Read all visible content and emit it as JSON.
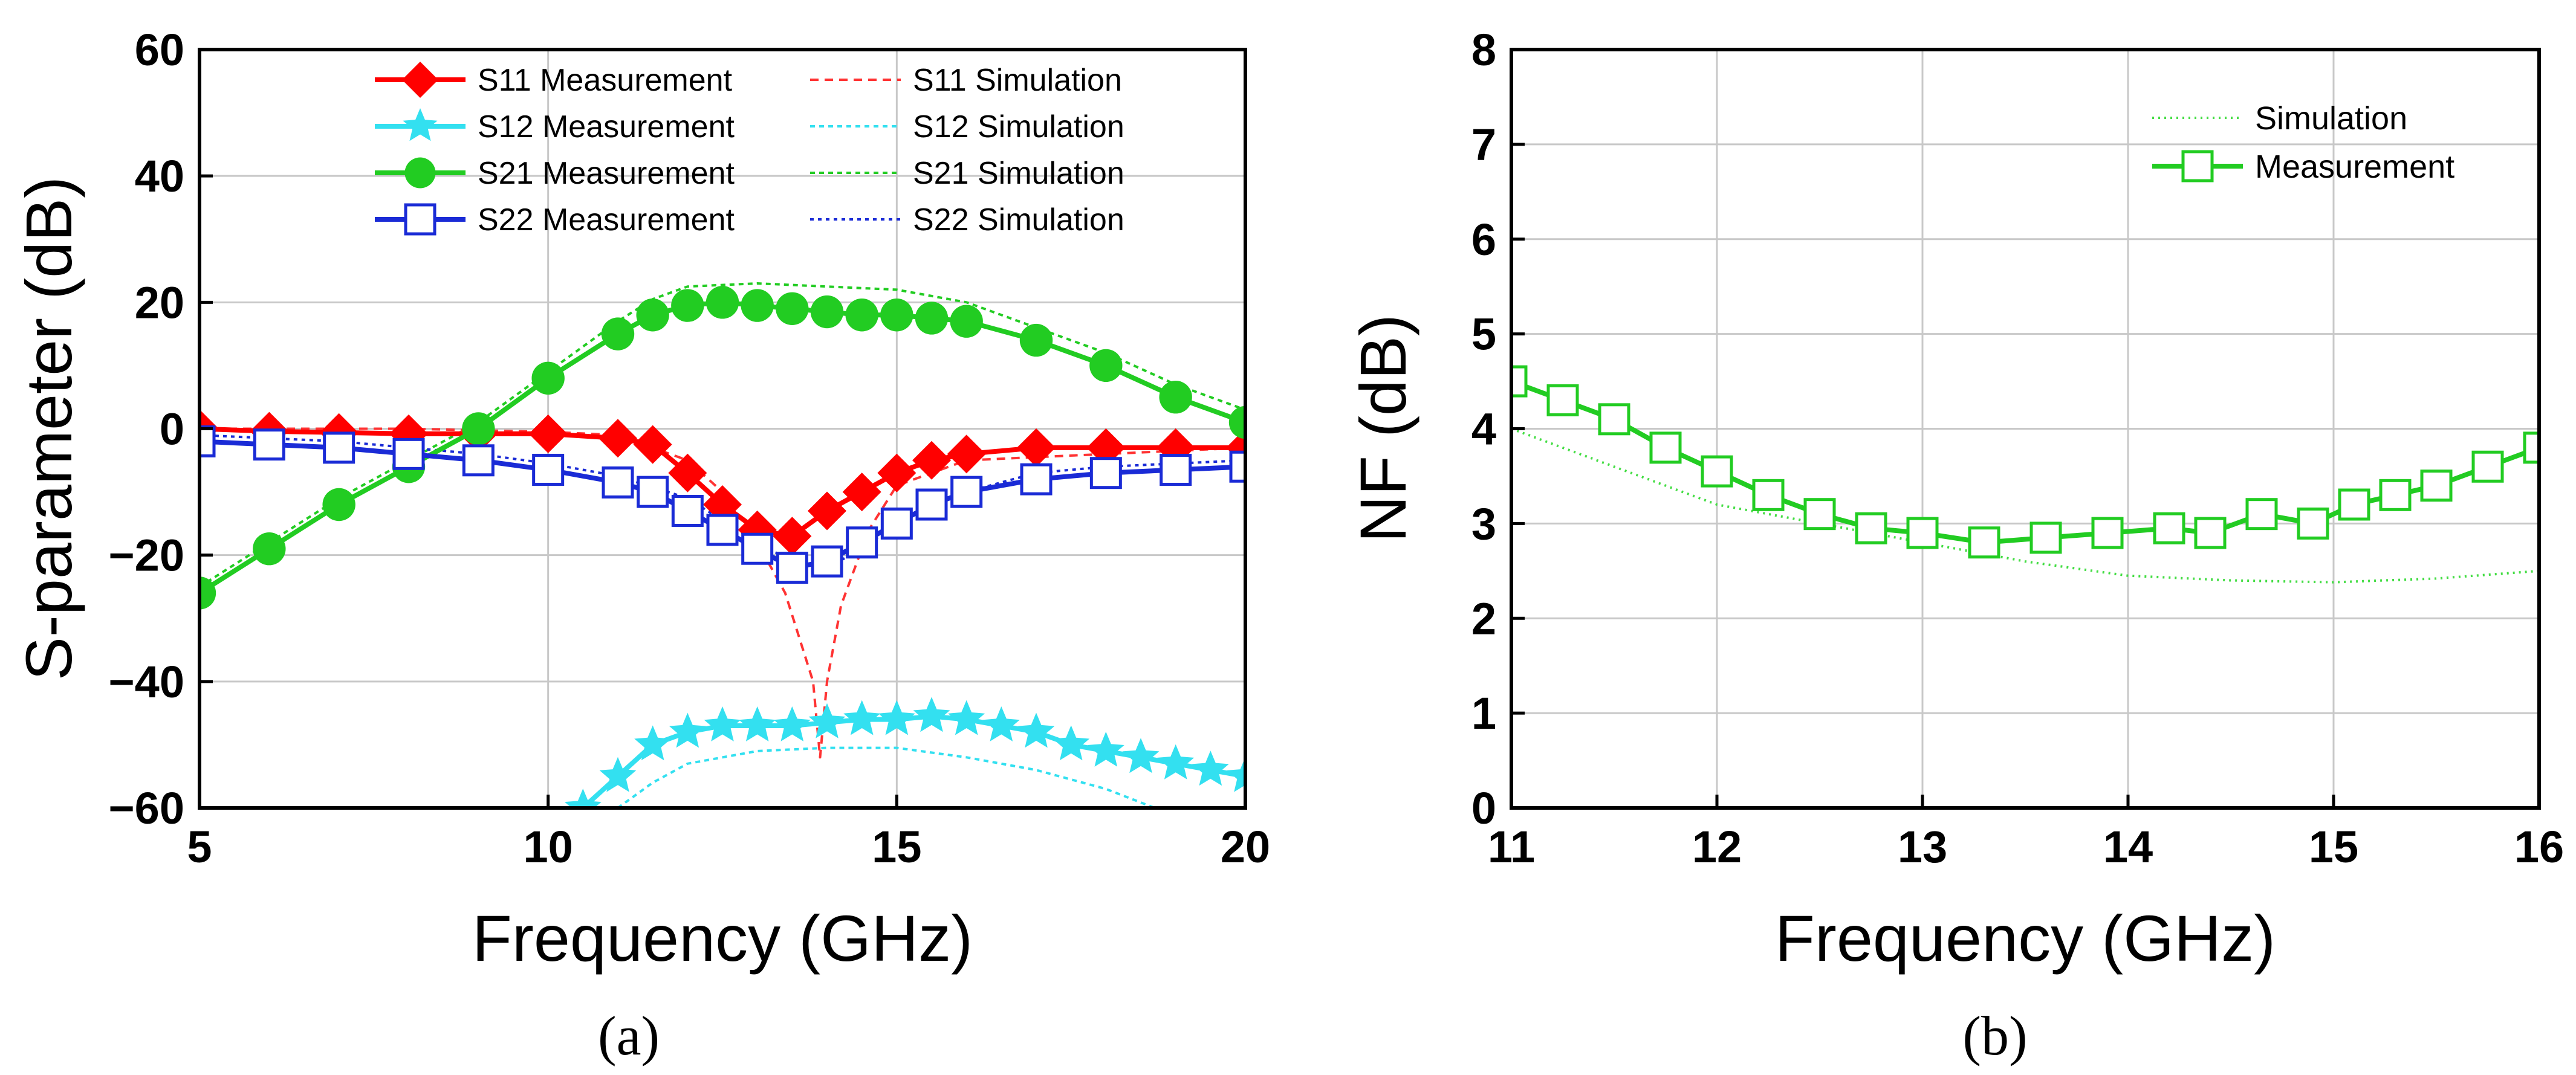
{
  "chart_data": [
    {
      "type": "line",
      "panel_label": "(a)",
      "xlabel": "Frequency (GHz)",
      "ylabel": "S-parameter (dB)",
      "xlim": [
        5,
        20
      ],
      "ylim": [
        -60,
        60
      ],
      "xticks": [
        5,
        10,
        15,
        20
      ],
      "yticks": [
        -60,
        -40,
        -20,
        0,
        20,
        40,
        60
      ],
      "grid": true,
      "legend_position": "top",
      "series": [
        {
          "name": "S11 Measurement",
          "kind": "measurement",
          "color": "#ff0000",
          "marker": "diamond",
          "x": [
            5,
            6,
            7,
            8,
            9,
            10,
            11,
            11.5,
            12,
            12.5,
            13,
            13.5,
            14,
            14.5,
            15,
            15.5,
            16,
            17,
            18,
            19,
            20
          ],
          "y": [
            0,
            -0.4,
            -0.6,
            -0.8,
            -0.8,
            -0.8,
            -1.5,
            -2.5,
            -7,
            -12,
            -16,
            -17,
            -13,
            -10,
            -7,
            -5,
            -4,
            -3,
            -3,
            -3,
            -3
          ]
        },
        {
          "name": "S12 Measurement",
          "kind": "measurement",
          "color": "#33e0f0",
          "marker": "star",
          "x": [
            10.5,
            11,
            11.5,
            12,
            12.5,
            13,
            13.5,
            14,
            14.5,
            15,
            15.5,
            16,
            16.5,
            17,
            17.5,
            18,
            18.5,
            19,
            19.5,
            20
          ],
          "y": [
            -60,
            -55,
            -50,
            -48,
            -47,
            -47,
            -47,
            -46.5,
            -46,
            -46,
            -45.5,
            -46,
            -47,
            -48,
            -50,
            -51,
            -52,
            -53,
            -54,
            -55
          ]
        },
        {
          "name": "S21 Measurement",
          "kind": "measurement",
          "color": "#22cc22",
          "marker": "circle",
          "x": [
            5,
            6,
            7,
            8,
            9,
            10,
            11,
            11.5,
            12,
            12.5,
            13,
            13.5,
            14,
            14.5,
            15,
            15.5,
            16,
            17,
            18,
            19,
            20
          ],
          "y": [
            -26,
            -19,
            -12,
            -6,
            0,
            8,
            15,
            18,
            19.5,
            20,
            19.5,
            19,
            18.5,
            18,
            18,
            17.5,
            17,
            14,
            10,
            5,
            1
          ]
        },
        {
          "name": "S22 Measurement",
          "kind": "measurement",
          "color": "#1a2bd6",
          "marker": "square",
          "x": [
            5,
            6,
            7,
            8,
            9,
            10,
            11,
            11.5,
            12,
            12.5,
            13,
            13.5,
            14,
            14.5,
            15,
            15.5,
            16,
            17,
            18,
            19,
            20
          ],
          "y": [
            -2,
            -2.5,
            -3,
            -4,
            -5,
            -6.5,
            -8.5,
            -10,
            -13,
            -16,
            -19,
            -22,
            -21,
            -18,
            -15,
            -12,
            -10,
            -8,
            -7,
            -6.5,
            -6
          ]
        },
        {
          "name": "S11 Simulation",
          "kind": "simulation",
          "color": "#ff3333",
          "dash": "14,10",
          "x": [
            5,
            8,
            10,
            11,
            12,
            12.5,
            13,
            13.4,
            13.8,
            13.9,
            14,
            14.2,
            14.6,
            15,
            16,
            18,
            20
          ],
          "y": [
            0,
            0,
            -0.5,
            -1,
            -5,
            -10,
            -18,
            -26,
            -40,
            -52,
            -40,
            -28,
            -16,
            -9,
            -5,
            -4,
            -3
          ]
        },
        {
          "name": "S12 Simulation",
          "kind": "simulation",
          "color": "#33e0f0",
          "dash": "8,7",
          "x": [
            11,
            11.5,
            12,
            13,
            14,
            15,
            16,
            17,
            18,
            18.7
          ],
          "y": [
            -60,
            -56,
            -53,
            -51,
            -50.5,
            -50.5,
            -52,
            -54,
            -57,
            -60
          ]
        },
        {
          "name": "S21 Simulation",
          "kind": "simulation",
          "color": "#22cc22",
          "dash": "8,7",
          "x": [
            5,
            7,
            9,
            10,
            11,
            11.5,
            12,
            13,
            14,
            15,
            16,
            17,
            18,
            19,
            20
          ],
          "y": [
            -25,
            -11,
            1,
            9,
            17,
            20.5,
            22.5,
            23,
            22.5,
            22,
            20,
            16,
            12,
            7,
            3
          ]
        },
        {
          "name": "S22 Simulation",
          "kind": "simulation",
          "color": "#1a2bd6",
          "dash": "6,7",
          "x": [
            5,
            7,
            9,
            10,
            11,
            12,
            13,
            13.5,
            14,
            14.5,
            15,
            16,
            17,
            18,
            20
          ],
          "y": [
            -1,
            -2,
            -4,
            -5.5,
            -7.5,
            -11,
            -18,
            -21,
            -22,
            -19,
            -15,
            -10,
            -7,
            -6,
            -5
          ]
        }
      ]
    },
    {
      "type": "line",
      "panel_label": "(b)",
      "xlabel": "Frequency (GHz)",
      "ylabel": "NF (dB)",
      "xlim": [
        11,
        16
      ],
      "ylim": [
        0,
        8
      ],
      "xticks": [
        11,
        12,
        13,
        14,
        15,
        16
      ],
      "yticks": [
        0,
        1,
        2,
        3,
        4,
        5,
        6,
        7,
        8
      ],
      "grid": true,
      "legend_position": "top-right",
      "series": [
        {
          "name": "Simulation",
          "kind": "simulation",
          "color": "#44dd44",
          "dash": "3,7",
          "x": [
            11,
            11.5,
            12,
            12.5,
            13,
            13.5,
            14,
            14.5,
            15,
            15.5,
            16
          ],
          "y": [
            4.0,
            3.6,
            3.2,
            3.0,
            2.8,
            2.6,
            2.45,
            2.4,
            2.38,
            2.42,
            2.5
          ]
        },
        {
          "name": "Measurement",
          "kind": "measurement",
          "color": "#22cc22",
          "marker": "square",
          "x": [
            11,
            11.25,
            11.5,
            11.75,
            12,
            12.25,
            12.5,
            12.75,
            13,
            13.3,
            13.6,
            13.9,
            14.2,
            14.4,
            14.65,
            14.9,
            15.1,
            15.3,
            15.5,
            15.75,
            16
          ],
          "y": [
            4.5,
            4.3,
            4.1,
            3.8,
            3.55,
            3.3,
            3.1,
            2.95,
            2.9,
            2.8,
            2.85,
            2.9,
            2.95,
            2.9,
            3.1,
            3.0,
            3.2,
            3.3,
            3.4,
            3.6,
            3.8
          ]
        }
      ]
    }
  ]
}
